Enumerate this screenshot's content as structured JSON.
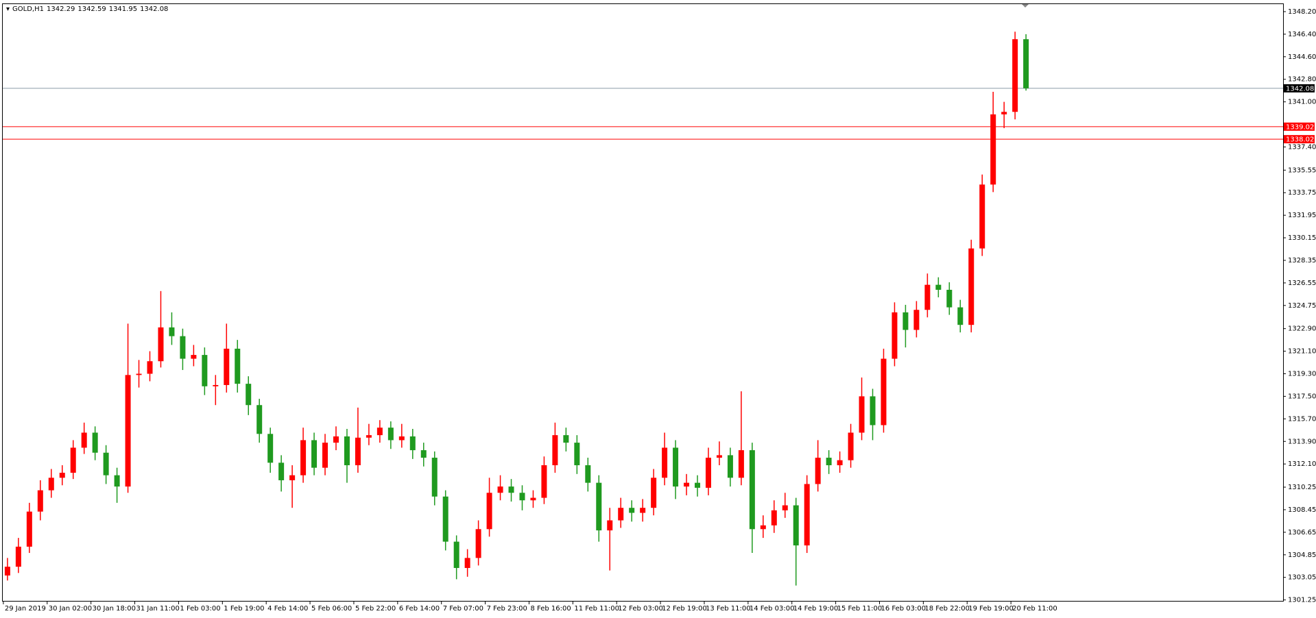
{
  "chart_data": {
    "type": "candlestick",
    "title": "GOLD,H1",
    "ohlc": [
      1342.29,
      1342.59,
      1341.95,
      1342.08
    ],
    "up_color": "#ff0000",
    "down_color": "#1f9a1f",
    "ylim": [
      1301.12,
      1348.8
    ],
    "yticks": [
      {
        "value": 1348.2,
        "label": "1348.20"
      },
      {
        "value": 1346.4,
        "label": "1346.40"
      },
      {
        "value": 1344.6,
        "label": "1344.60"
      },
      {
        "value": 1342.8,
        "label": "1342.80"
      },
      {
        "value": 1341,
        "label": "1341.00"
      },
      {
        "value": 1337.4,
        "label": "1337.40"
      },
      1335.55,
      1333.75,
      1331.95,
      1330.15,
      1328.35,
      1326.55,
      1324.75,
      {
        "value": 1322.9,
        "label": "1322.90"
      },
      {
        "value": 1321.1,
        "label": "1321.10"
      },
      {
        "value": 1319.3,
        "label": "1319.30"
      },
      {
        "value": 1317.5,
        "label": "1317.50"
      },
      {
        "value": 1315.7,
        "label": "1315.70"
      },
      {
        "value": 1313.9,
        "label": "1313.90"
      },
      {
        "value": 1312.1,
        "label": "1312.10"
      },
      1310.25,
      1308.45,
      1306.65,
      1304.85,
      1303.05,
      1301.25
    ],
    "price_line": {
      "value": 1342.08,
      "color": "#8a9aa8"
    },
    "hlines": [
      {
        "value": 1339.02,
        "color": "#ff0000"
      },
      {
        "value": 1338.02,
        "color": "#ff0000"
      }
    ],
    "categories": [
      "29 Jan 2019",
      null,
      null,
      null,
      "30 Jan 02:00",
      null,
      null,
      null,
      "30 Jan 18:00",
      null,
      null,
      null,
      "31 Jan 11:00",
      null,
      null,
      null,
      "1 Feb 03:00",
      null,
      null,
      null,
      "1 Feb 19:00",
      null,
      null,
      null,
      "4 Feb 14:00",
      null,
      null,
      null,
      "5 Feb 06:00",
      null,
      null,
      null,
      "5 Feb 22:00",
      null,
      null,
      null,
      "6 Feb 14:00",
      null,
      null,
      null,
      "7 Feb 07:00",
      null,
      null,
      null,
      "7 Feb 23:00",
      null,
      null,
      null,
      "8 Feb 16:00",
      null,
      null,
      null,
      "11 Feb 11:00",
      null,
      null,
      null,
      "12 Feb 03:00",
      null,
      null,
      null,
      "12 Feb 19:00",
      null,
      null,
      null,
      "13 Feb 11:00",
      null,
      null,
      null,
      "14 Feb 03:00",
      null,
      null,
      null,
      "14 Feb 19:00",
      null,
      null,
      null,
      "15 Feb 11:00",
      null,
      null,
      null,
      "16 Feb 03:00",
      null,
      null,
      null,
      "18 Feb 22:00",
      null,
      null,
      null,
      "19 Feb 19:00",
      null,
      null,
      null,
      "20 Feb 11:00",
      null
    ],
    "candles": [
      [
        1303.2,
        1304.6,
        1302.8,
        1303.9
      ],
      [
        1303.9,
        1306.2,
        1303.4,
        1305.5
      ],
      [
        1305.5,
        1309.0,
        1305.0,
        1308.3
      ],
      [
        1308.3,
        1310.8,
        1307.6,
        1310.0
      ],
      [
        1310.0,
        1311.7,
        1309.4,
        1311.0
      ],
      [
        1311.0,
        1312.0,
        1310.4,
        1311.4
      ],
      [
        1311.4,
        1314.0,
        1310.9,
        1313.4
      ],
      [
        1313.4,
        1315.4,
        1312.9,
        1314.6
      ],
      [
        1314.6,
        1315.1,
        1312.4,
        1313.0
      ],
      [
        1313.0,
        1313.6,
        1310.5,
        1311.2
      ],
      [
        1311.2,
        1311.8,
        1309.0,
        1310.3
      ],
      [
        1310.3,
        1323.3,
        1309.8,
        1319.2
      ],
      [
        1319.2,
        1320.4,
        1318.2,
        1319.3
      ],
      [
        1319.3,
        1321.1,
        1318.7,
        1320.3
      ],
      [
        1320.3,
        1325.9,
        1319.8,
        1323.0
      ],
      [
        1323.0,
        1324.2,
        1321.6,
        1322.3
      ],
      [
        1322.3,
        1322.9,
        1319.6,
        1320.5
      ],
      [
        1320.5,
        1321.6,
        1319.9,
        1320.8
      ],
      [
        1320.8,
        1321.4,
        1317.6,
        1318.3
      ],
      [
        1318.3,
        1319.2,
        1316.8,
        1318.4
      ],
      [
        1318.4,
        1323.3,
        1317.8,
        1321.3
      ],
      [
        1321.3,
        1322.0,
        1317.8,
        1318.5
      ],
      [
        1318.5,
        1319.1,
        1316.0,
        1316.8
      ],
      [
        1316.8,
        1317.3,
        1313.8,
        1314.5
      ],
      [
        1314.5,
        1315.0,
        1311.4,
        1312.2
      ],
      [
        1312.2,
        1312.8,
        1309.9,
        1310.8
      ],
      [
        1310.8,
        1312.0,
        1308.6,
        1311.2
      ],
      [
        1311.2,
        1315.0,
        1310.6,
        1314.0
      ],
      [
        1314.0,
        1314.6,
        1311.2,
        1311.8
      ],
      [
        1311.8,
        1314.5,
        1311.2,
        1313.8
      ],
      [
        1313.8,
        1315.1,
        1313.2,
        1314.3
      ],
      [
        1314.3,
        1314.9,
        1310.6,
        1312.0
      ],
      [
        1312.0,
        1316.6,
        1311.4,
        1314.2
      ],
      [
        1314.2,
        1315.3,
        1313.6,
        1314.4
      ],
      [
        1314.4,
        1315.6,
        1313.8,
        1315.0
      ],
      [
        1315.0,
        1315.5,
        1313.3,
        1314.0
      ],
      [
        1314.0,
        1315.3,
        1313.4,
        1314.3
      ],
      [
        1314.3,
        1314.9,
        1312.5,
        1313.2
      ],
      [
        1313.2,
        1313.8,
        1311.9,
        1312.6
      ],
      [
        1312.6,
        1313.1,
        1308.8,
        1309.5
      ],
      [
        1309.5,
        1310.0,
        1305.2,
        1305.9
      ],
      [
        1305.9,
        1306.4,
        1302.9,
        1303.8
      ],
      [
        1303.8,
        1305.3,
        1303.1,
        1304.6
      ],
      [
        1304.6,
        1307.6,
        1304.0,
        1306.9
      ],
      [
        1306.9,
        1311.0,
        1306.3,
        1309.8
      ],
      [
        1309.8,
        1311.2,
        1309.2,
        1310.3
      ],
      [
        1310.3,
        1310.9,
        1309.1,
        1309.8
      ],
      [
        1309.8,
        1310.4,
        1308.4,
        1309.2
      ],
      [
        1309.2,
        1310.0,
        1308.6,
        1309.4
      ],
      [
        1309.4,
        1312.7,
        1308.9,
        1312.0
      ],
      [
        1312.0,
        1315.4,
        1311.4,
        1314.4
      ],
      [
        1314.4,
        1315.0,
        1313.1,
        1313.8
      ],
      [
        1313.8,
        1314.4,
        1311.3,
        1312.0
      ],
      [
        1312.0,
        1312.6,
        1309.9,
        1310.6
      ],
      [
        1310.6,
        1311.2,
        1305.9,
        1306.8
      ],
      [
        1306.8,
        1308.6,
        1303.6,
        1307.6
      ],
      [
        1307.6,
        1309.4,
        1307.0,
        1308.6
      ],
      [
        1308.6,
        1309.2,
        1307.5,
        1308.2
      ],
      [
        1308.2,
        1309.3,
        1307.5,
        1308.6
      ],
      [
        1308.6,
        1311.7,
        1308.0,
        1311.0
      ],
      [
        1311.0,
        1314.6,
        1310.4,
        1313.4
      ],
      [
        1313.4,
        1314.0,
        1309.3,
        1310.3
      ],
      [
        1310.3,
        1311.3,
        1309.6,
        1310.6
      ],
      [
        1310.6,
        1311.2,
        1309.5,
        1310.2
      ],
      [
        1310.2,
        1313.4,
        1309.6,
        1312.6
      ],
      [
        1312.6,
        1313.9,
        1312.0,
        1312.8
      ],
      [
        1312.8,
        1313.4,
        1310.3,
        1311.0
      ],
      [
        1311.0,
        1317.9,
        1310.4,
        1313.2
      ],
      [
        1313.2,
        1313.8,
        1305.0,
        1306.9
      ],
      [
        1306.9,
        1308.0,
        1306.2,
        1307.2
      ],
      [
        1307.2,
        1309.2,
        1306.6,
        1308.4
      ],
      [
        1308.4,
        1309.8,
        1307.8,
        1308.8
      ],
      [
        1308.8,
        1309.4,
        1302.4,
        1305.6
      ],
      [
        1305.6,
        1311.2,
        1305.0,
        1310.5
      ],
      [
        1310.5,
        1314.0,
        1309.9,
        1312.6
      ],
      [
        1312.6,
        1313.2,
        1311.3,
        1312.0
      ],
      [
        1312.0,
        1313.1,
        1311.4,
        1312.4
      ],
      [
        1312.4,
        1315.3,
        1311.8,
        1314.6
      ],
      [
        1314.6,
        1319.0,
        1314.0,
        1317.5
      ],
      [
        1317.5,
        1318.1,
        1314.0,
        1315.2
      ],
      [
        1315.2,
        1321.3,
        1314.6,
        1320.5
      ],
      [
        1320.5,
        1325.0,
        1319.9,
        1324.2
      ],
      [
        1324.2,
        1324.8,
        1321.4,
        1322.8
      ],
      [
        1322.8,
        1325.1,
        1322.2,
        1324.4
      ],
      [
        1324.4,
        1327.3,
        1323.8,
        1326.4
      ],
      [
        1326.4,
        1327.0,
        1325.4,
        1326.0
      ],
      [
        1326.0,
        1326.6,
        1324.0,
        1324.6
      ],
      [
        1324.6,
        1325.2,
        1322.6,
        1323.2
      ],
      [
        1323.2,
        1330.0,
        1322.6,
        1329.3
      ],
      [
        1329.3,
        1335.2,
        1328.7,
        1334.4
      ],
      [
        1334.4,
        1341.8,
        1333.8,
        1340.0
      ],
      [
        1340.0,
        1341.0,
        1338.9,
        1340.2
      ],
      [
        1340.2,
        1346.6,
        1339.6,
        1346.0
      ],
      [
        1346.0,
        1346.4,
        1341.9,
        1342.08
      ]
    ]
  }
}
